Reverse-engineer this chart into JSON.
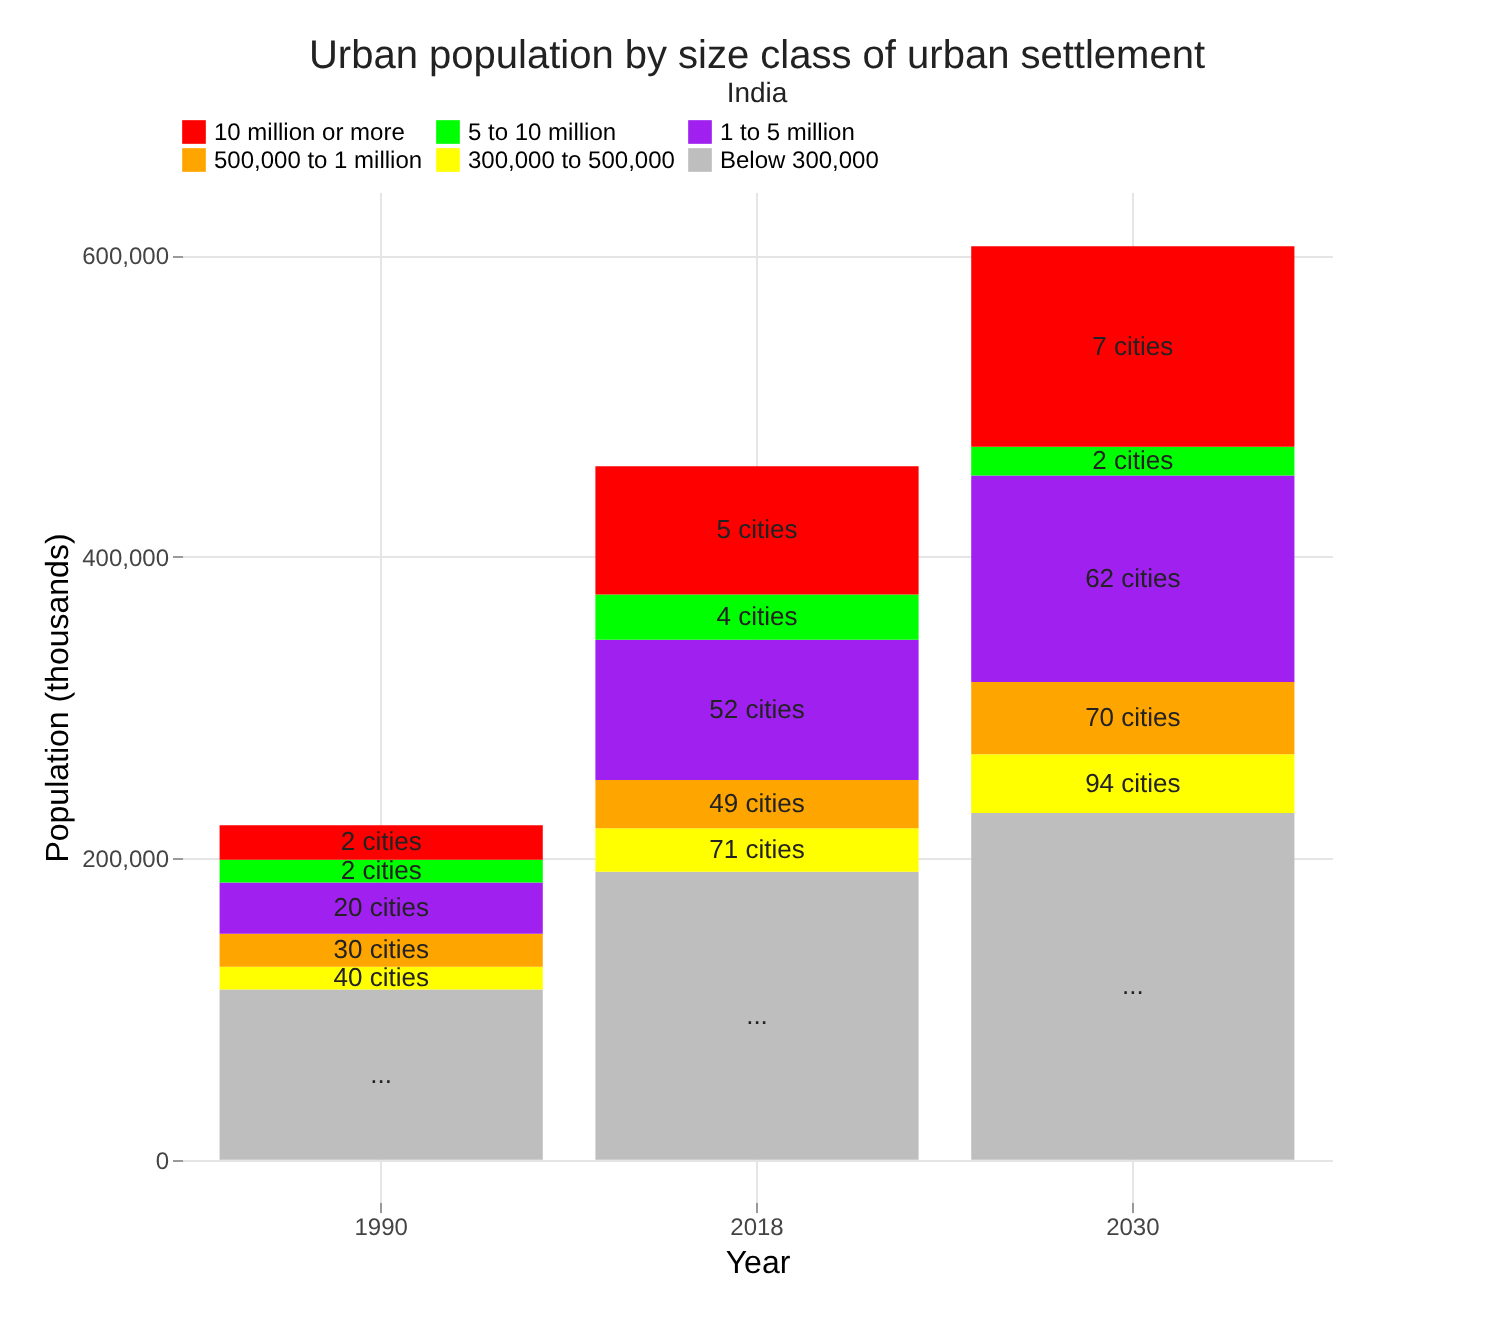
{
  "chart_data": {
    "type": "bar",
    "title": "Urban population by size class of urban settlement",
    "subtitle": "India",
    "xlabel": "Year",
    "ylabel": "Population (thousands)",
    "categories": [
      "1990",
      "2018",
      "2030"
    ],
    "stacked": true,
    "series": [
      {
        "name": "Below 300,000",
        "color": "#bebebe",
        "values": [
          113000,
          191000,
          230000
        ]
      },
      {
        "name": "300,000 to 500,000",
        "color": "#ffff00",
        "values": [
          15000,
          29000,
          39000
        ]
      },
      {
        "name": "500,000 to 1 million",
        "color": "#ffa500",
        "values": [
          22000,
          32000,
          48000
        ]
      },
      {
        "name": "1 to 5 million",
        "color": "#a020f0",
        "values": [
          34000,
          93000,
          137000
        ]
      },
      {
        "name": "5 to 10 million",
        "color": "#00ff00",
        "values": [
          15000,
          30000,
          19000
        ]
      },
      {
        "name": "10 million or more",
        "color": "#ff0000",
        "values": [
          23000,
          85000,
          133000
        ]
      }
    ],
    "annotations": [
      "...",
      "40 cities",
      "30 cities",
      "20 cities",
      "2 cities",
      "2 cities",
      "...",
      "71 cities",
      "49 cities",
      "52 cities",
      "4 cities",
      "5 cities",
      "...",
      "94 cities",
      "70 cities",
      "62 cities",
      "2 cities",
      "7 cities"
    ],
    "ylim": [
      -28000,
      642000
    ],
    "yticks": [
      {
        "value": 0,
        "label": "0"
      },
      {
        "value": 200000,
        "label": "200,000"
      },
      {
        "value": 400000,
        "label": "400,000"
      },
      {
        "value": 600000,
        "label": "600,000"
      }
    ],
    "grid": true,
    "legend": "top"
  }
}
